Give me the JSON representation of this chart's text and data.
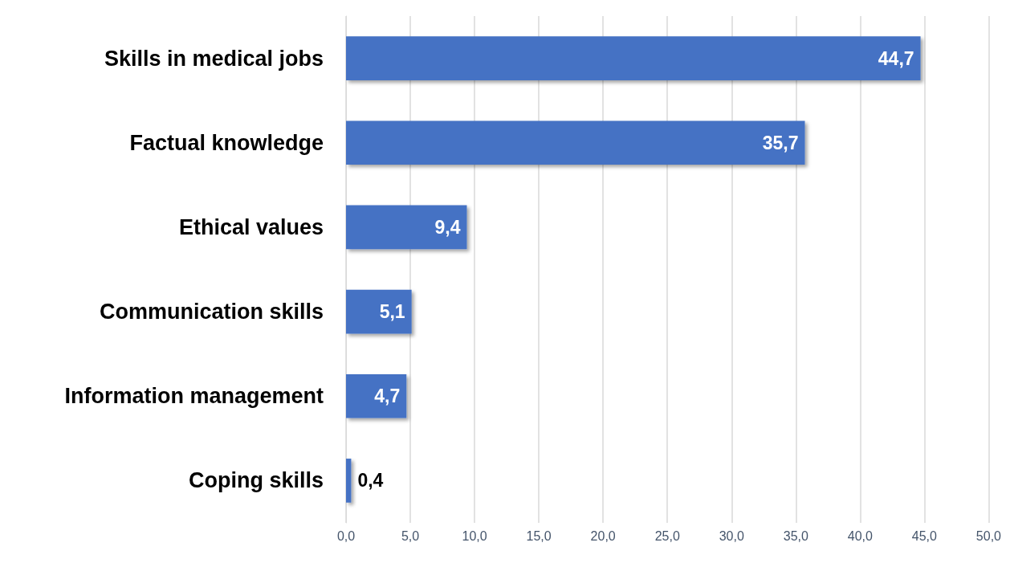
{
  "chart_data": {
    "type": "bar",
    "orientation": "horizontal",
    "categories": [
      "Skills in medical jobs",
      "Factual knowledge",
      "Ethical values",
      "Communication skills",
      "Information management",
      "Coping skills"
    ],
    "values": [
      44.7,
      35.7,
      9.4,
      5.1,
      4.7,
      0.4
    ],
    "value_labels": [
      "44,7",
      "35,7",
      "9,4",
      "5,1",
      "4,7",
      "0,4"
    ],
    "color": "#4472c4",
    "xlim": [
      0,
      50
    ],
    "xticks": [
      {
        "value": 0,
        "label": "0,0"
      },
      {
        "value": 5,
        "label": "5,0"
      },
      {
        "value": 10,
        "label": "10,0"
      },
      {
        "value": 15,
        "label": "15,0"
      },
      {
        "value": 20,
        "label": "20,0"
      },
      {
        "value": 25,
        "label": "25,0"
      },
      {
        "value": 30,
        "label": "30,0"
      },
      {
        "value": 35,
        "label": "35,0"
      },
      {
        "value": 40,
        "label": "40,0"
      },
      {
        "value": 45,
        "label": "45,0"
      },
      {
        "value": 50,
        "label": "50,0"
      }
    ],
    "grid": "x"
  }
}
